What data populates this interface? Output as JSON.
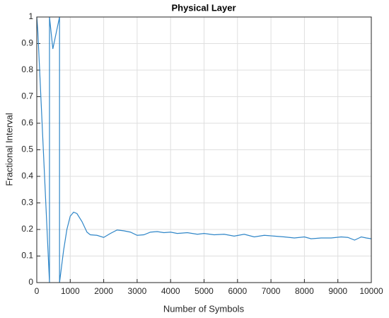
{
  "chart_data": {
    "type": "line",
    "title": "Physical Layer",
    "x_label": "Number of Symbols",
    "y_label": "Fractional Interval",
    "x": [
      0,
      30,
      380,
      380,
      480,
      680,
      680,
      800,
      900,
      1000,
      1100,
      1200,
      1350,
      1500,
      1600,
      1800,
      2000,
      2200,
      2400,
      2600,
      2800,
      3000,
      3200,
      3400,
      3600,
      3800,
      4000,
      4200,
      4500,
      4800,
      5000,
      5300,
      5600,
      5900,
      6200,
      6500,
      6800,
      7100,
      7400,
      7700,
      8000,
      8200,
      8500,
      8800,
      9100,
      9300,
      9500,
      9700,
      9850,
      10000
    ],
    "series": [
      {
        "name": "Fractional Interval",
        "color": "#2f86c8",
        "values": [
          1,
          0.95,
          0,
          1,
          0.88,
          1,
          0,
          0.12,
          0.2,
          0.25,
          0.265,
          0.26,
          0.23,
          0.19,
          0.18,
          0.178,
          0.17,
          0.185,
          0.198,
          0.195,
          0.19,
          0.178,
          0.18,
          0.19,
          0.192,
          0.188,
          0.19,
          0.185,
          0.188,
          0.182,
          0.185,
          0.18,
          0.182,
          0.175,
          0.182,
          0.172,
          0.178,
          0.175,
          0.172,
          0.168,
          0.172,
          0.165,
          0.168,
          0.168,
          0.172,
          0.17,
          0.16,
          0.172,
          0.168,
          0.165
        ]
      }
    ],
    "xlim": [
      0,
      10000
    ],
    "xticks": [
      0,
      1000,
      2000,
      3000,
      4000,
      5000,
      6000,
      7000,
      8000,
      9000,
      10000
    ],
    "ylim": [
      0,
      1
    ],
    "yticks": [
      0,
      0.1,
      0.2,
      0.3,
      0.4,
      0.5,
      0.6,
      0.7,
      0.8,
      0.9,
      1
    ],
    "grid": true
  }
}
